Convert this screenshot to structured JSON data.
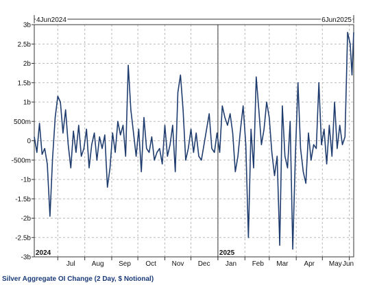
{
  "caption": "Silver Aggregate OI Change (2 Day, $ Notional)",
  "chart_data": {
    "type": "line",
    "title": "Silver Aggregate OI Change (2 Day, $ Notional)",
    "range_start_label": "4Jun2024",
    "range_end_label": "6Jun2025",
    "x_tick_labels": [
      "Jul",
      "Aug",
      "Sep",
      "Oct",
      "Nov",
      "Dec",
      "Jan",
      "Feb",
      "Mar",
      "Apr",
      "May",
      "Jun"
    ],
    "year_labels": [
      "2024",
      "2025"
    ],
    "y_tick_labels": [
      "3b",
      "2.5b",
      "2b",
      "1.5b",
      "1b",
      "500m",
      "0",
      "-500m",
      "-1b",
      "-1.5b",
      "-2b",
      "-2.5b",
      "-3b"
    ],
    "ylim": [
      -3000000000,
      3000000000
    ],
    "grid": true,
    "line_color": "#1f3c6e",
    "series": [
      {
        "x": [
          "2024-06-04",
          "2024-06-07",
          "2024-06-10",
          "2024-06-13",
          "2024-06-16",
          "2024-06-19",
          "2024-06-22",
          "2024-06-25",
          "2024-06-28",
          "2024-07-01",
          "2024-07-04",
          "2024-07-07",
          "2024-07-10",
          "2024-07-13",
          "2024-07-16",
          "2024-07-19",
          "2024-07-22",
          "2024-07-25",
          "2024-07-28",
          "2024-07-31",
          "2024-08-03",
          "2024-08-06",
          "2024-08-09",
          "2024-08-12",
          "2024-08-15",
          "2024-08-18",
          "2024-08-21",
          "2024-08-24",
          "2024-08-27",
          "2024-08-30",
          "2024-09-02",
          "2024-09-05",
          "2024-09-08",
          "2024-09-11",
          "2024-09-14",
          "2024-09-17",
          "2024-09-20",
          "2024-09-23",
          "2024-09-26",
          "2024-09-29",
          "2024-10-02",
          "2024-10-05",
          "2024-10-08",
          "2024-10-11",
          "2024-10-14",
          "2024-10-17",
          "2024-10-20",
          "2024-10-23",
          "2024-10-26",
          "2024-10-29",
          "2024-11-01",
          "2024-11-04",
          "2024-11-07",
          "2024-11-10",
          "2024-11-13",
          "2024-11-16",
          "2024-11-19",
          "2024-11-22",
          "2024-11-25",
          "2024-11-28",
          "2024-12-01",
          "2024-12-04",
          "2024-12-07",
          "2024-12-10",
          "2024-12-13",
          "2024-12-16",
          "2024-12-19",
          "2024-12-22",
          "2024-12-25",
          "2024-12-28",
          "2024-12-31",
          "2025-01-03",
          "2025-01-06",
          "2025-01-09",
          "2025-01-12",
          "2025-01-15",
          "2025-01-18",
          "2025-01-21",
          "2025-01-24",
          "2025-01-27",
          "2025-01-30",
          "2025-02-02",
          "2025-02-05",
          "2025-02-08",
          "2025-02-11",
          "2025-02-14",
          "2025-02-17",
          "2025-02-20",
          "2025-02-23",
          "2025-02-26",
          "2025-03-01",
          "2025-03-04",
          "2025-03-07",
          "2025-03-10",
          "2025-03-13",
          "2025-03-16",
          "2025-03-19",
          "2025-03-22",
          "2025-03-25",
          "2025-03-28",
          "2025-03-31",
          "2025-04-03",
          "2025-04-06",
          "2025-04-09",
          "2025-04-12",
          "2025-04-15",
          "2025-04-18",
          "2025-04-21",
          "2025-04-24",
          "2025-04-27",
          "2025-04-30",
          "2025-05-03",
          "2025-05-06",
          "2025-05-09",
          "2025-05-12",
          "2025-05-15",
          "2025-05-18",
          "2025-05-21",
          "2025-05-24",
          "2025-05-27",
          "2025-05-30",
          "2025-06-02",
          "2025-06-04",
          "2025-06-06"
        ],
        "values": [
          100000000,
          -300000000,
          450000000,
          -350000000,
          -200000000,
          -600000000,
          -1950000000,
          -450000000,
          600000000,
          1150000000,
          1000000000,
          200000000,
          800000000,
          -100000000,
          -700000000,
          250000000,
          -300000000,
          400000000,
          -400000000,
          -200000000,
          300000000,
          -700000000,
          -100000000,
          200000000,
          -500000000,
          100000000,
          -200000000,
          150000000,
          -1200000000,
          -700000000,
          200000000,
          -300000000,
          500000000,
          150000000,
          400000000,
          -400000000,
          1950000000,
          800000000,
          200000000,
          -400000000,
          300000000,
          -800000000,
          600000000,
          -200000000,
          -300000000,
          100000000,
          -500000000,
          -300000000,
          -200000000,
          -600000000,
          400000000,
          -400000000,
          -100000000,
          400000000,
          -800000000,
          1250000000,
          1700000000,
          800000000,
          -500000000,
          -200000000,
          300000000,
          -300000000,
          200000000,
          -400000000,
          -500000000,
          -100000000,
          300000000,
          700000000,
          -200000000,
          -300000000,
          200000000,
          -300000000,
          900000000,
          600000000,
          400000000,
          700000000,
          200000000,
          -800000000,
          -400000000,
          300000000,
          900000000,
          -100000000,
          -2500000000,
          300000000,
          -700000000,
          1650000000,
          800000000,
          -100000000,
          300000000,
          1000000000,
          600000000,
          -300000000,
          -900000000,
          -400000000,
          -2700000000,
          900000000,
          -400000000,
          -700000000,
          500000000,
          -2800000000,
          -400000000,
          1500000000,
          -200000000,
          -800000000,
          -1100000000,
          200000000,
          -500000000,
          -100000000,
          -200000000,
          1500000000,
          -100000000,
          300000000,
          -600000000,
          400000000,
          -400000000,
          1000000000,
          -200000000,
          400000000,
          -100000000,
          100000000,
          2800000000,
          2500000000,
          1700000000,
          2800000000
        ]
      }
    ]
  }
}
